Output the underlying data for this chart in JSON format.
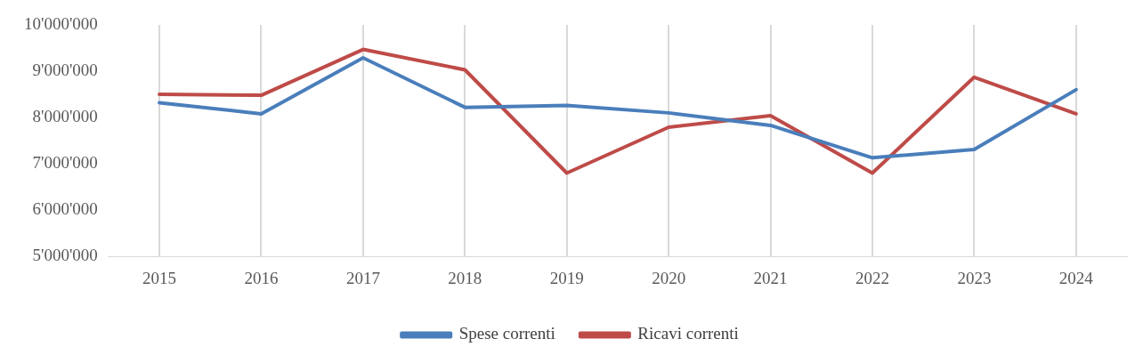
{
  "chart_data": {
    "type": "line",
    "categories": [
      "2015",
      "2016",
      "2017",
      "2018",
      "2019",
      "2020",
      "2021",
      "2022",
      "2023",
      "2024"
    ],
    "series": [
      {
        "name": "Spese correnti",
        "color": "#4a7ebb",
        "values": [
          8320000,
          8080000,
          9290000,
          8220000,
          8260000,
          8100000,
          7830000,
          7130000,
          7310000,
          8600000
        ]
      },
      {
        "name": "Ricavi correnti",
        "color": "#be4b48",
        "values": [
          8500000,
          8480000,
          9470000,
          9030000,
          6800000,
          7790000,
          8040000,
          6800000,
          8870000,
          8080000
        ]
      }
    ],
    "ylim": [
      5000000,
      10000000
    ],
    "yticks": [
      {
        "value": 5000000,
        "label": "5'000'000"
      },
      {
        "value": 6000000,
        "label": "6'000'000"
      },
      {
        "value": 7000000,
        "label": "7'000'000"
      },
      {
        "value": 8000000,
        "label": "8'000'000"
      },
      {
        "value": 9000000,
        "label": "9'000'000"
      },
      {
        "value": 10000000,
        "label": "10'000'000"
      }
    ],
    "grid": "x",
    "legend": "bottom",
    "marker": "none",
    "line_style": "solid"
  }
}
